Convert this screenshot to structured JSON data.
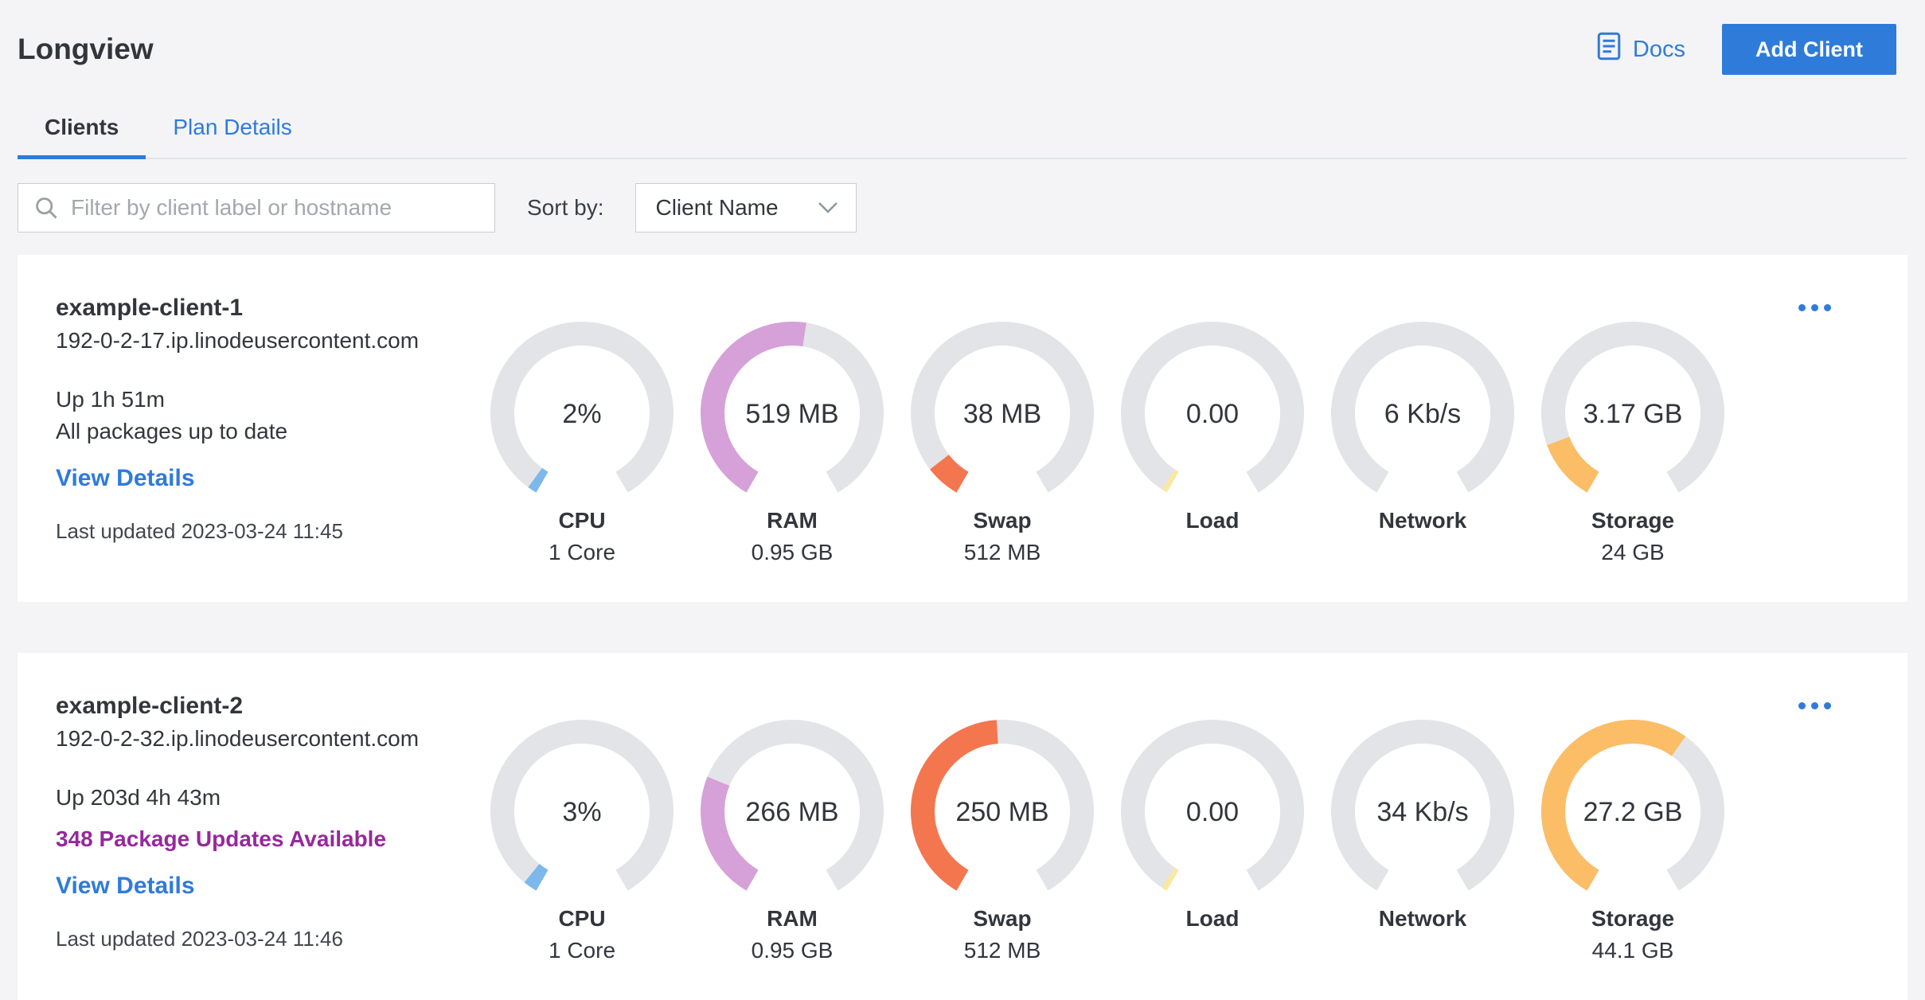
{
  "page": {
    "title": "Longview"
  },
  "header": {
    "docs_label": "Docs",
    "add_client_label": "Add Client"
  },
  "tabs": [
    {
      "label": "Clients",
      "active": true
    },
    {
      "label": "Plan Details",
      "active": false
    }
  ],
  "filter": {
    "placeholder": "Filter by client label or hostname",
    "sort_by_label": "Sort by:",
    "sort_value": "Client Name"
  },
  "colors": {
    "accent": "#2f7bd9",
    "gauge_track": "#e3e4e8",
    "cpu": "#7db8ec",
    "ram": "#d5a1d8",
    "swap": "#f4764f",
    "load": "#f9e8a0",
    "network": "#f9e8a0",
    "storage": "#fbbd66",
    "package_alert": "#96289c"
  },
  "clients": [
    {
      "name": "example-client-1",
      "hostname": "192-0-2-17.ip.linodeusercontent.com",
      "uptime": "Up 1h 51m",
      "packages": "All packages up to date",
      "packages_highlight": false,
      "view_details_label": "View Details",
      "last_updated": "Last updated 2023-03-24 11:45",
      "gauges": [
        {
          "label": "CPU",
          "value": "2%",
          "sublabel": "1 Core",
          "fraction": 0.02,
          "color": "#7db8ec"
        },
        {
          "label": "RAM",
          "value": "519 MB",
          "sublabel": "0.95 GB",
          "fraction": 0.53,
          "color": "#d5a1d8"
        },
        {
          "label": "Swap",
          "value": "38 MB",
          "sublabel": "512 MB",
          "fraction": 0.074,
          "color": "#f4764f"
        },
        {
          "label": "Load",
          "value": "0.00",
          "sublabel": "",
          "fraction": 0.012,
          "color": "#f9e8a0"
        },
        {
          "label": "Network",
          "value": "6 Kb/s",
          "sublabel": "",
          "fraction": 0,
          "color": "#f9e8a0"
        },
        {
          "label": "Storage",
          "value": "3.17 GB",
          "sublabel": "24 GB",
          "fraction": 0.132,
          "color": "#fbbd66"
        }
      ]
    },
    {
      "name": "example-client-2",
      "hostname": "192-0-2-32.ip.linodeusercontent.com",
      "uptime": "Up 203d 4h 43m",
      "packages": "348 Package Updates Available",
      "packages_highlight": true,
      "view_details_label": "View Details",
      "last_updated": "Last updated 2023-03-24 11:46",
      "gauges": [
        {
          "label": "CPU",
          "value": "3%",
          "sublabel": "1 Core",
          "fraction": 0.03,
          "color": "#7db8ec"
        },
        {
          "label": "RAM",
          "value": "266 MB",
          "sublabel": "0.95 GB",
          "fraction": 0.274,
          "color": "#d5a1d8"
        },
        {
          "label": "Swap",
          "value": "250 MB",
          "sublabel": "512 MB",
          "fraction": 0.488,
          "color": "#f4764f"
        },
        {
          "label": "Load",
          "value": "0.00",
          "sublabel": "",
          "fraction": 0.012,
          "color": "#f9e8a0"
        },
        {
          "label": "Network",
          "value": "34 Kb/s",
          "sublabel": "",
          "fraction": 0,
          "color": "#f9e8a0"
        },
        {
          "label": "Storage",
          "value": "27.2 GB",
          "sublabel": "44.1 GB",
          "fraction": 0.617,
          "color": "#fbbd66"
        }
      ]
    }
  ]
}
